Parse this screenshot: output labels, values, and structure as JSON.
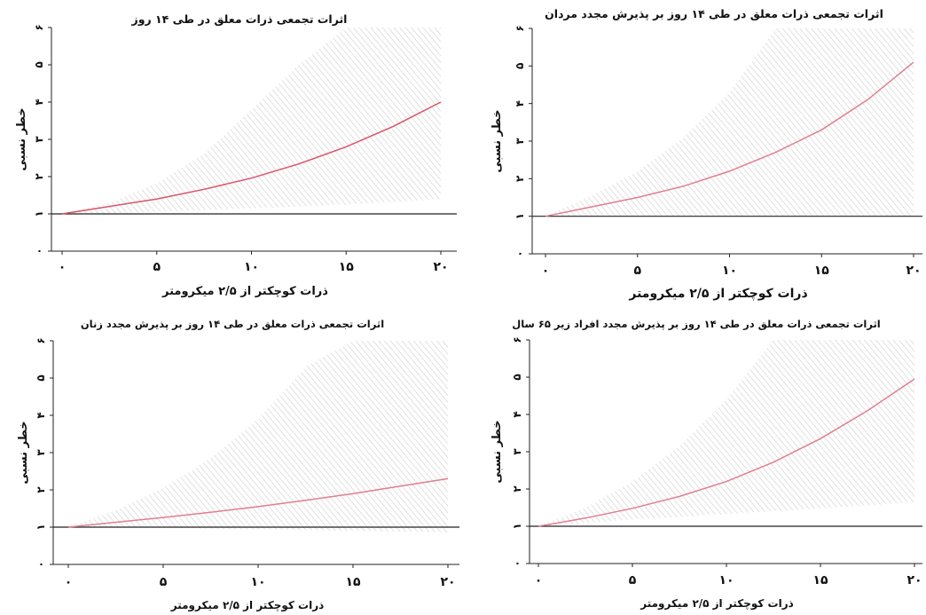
{
  "chart_data": [
    {
      "type": "line",
      "title": "اثرات تجمعی ذرات معلق در طی ۱۴ روز",
      "xlabel": "ذرات کوچکتر از ۲/۵ میکرومتر",
      "ylabel": "خطر نسبی",
      "xlim": [
        0,
        20
      ],
      "ylim": [
        0,
        6
      ],
      "x_tick_labels": [
        "۰",
        "۵",
        "۱۰",
        "۱۵",
        "۲۰"
      ],
      "y_tick_labels": [
        "۰",
        "۱",
        "۲",
        "۳",
        "۴",
        "۵",
        "۶"
      ],
      "reference_line": 1,
      "series": [
        {
          "x": [
            0,
            2.5,
            5,
            7.5,
            10,
            12.5,
            15,
            17.5,
            20
          ],
          "y": [
            1.0,
            1.2,
            1.4,
            1.66,
            1.96,
            2.34,
            2.8,
            3.35,
            4.0
          ],
          "lower": [
            1.0,
            1.02,
            1.06,
            1.1,
            1.15,
            1.19,
            1.25,
            1.32,
            1.4
          ],
          "upper": [
            1.0,
            1.3,
            1.82,
            2.62,
            3.8,
            5.0,
            6.0,
            6.0,
            6.0
          ],
          "color": "#d9536a"
        }
      ]
    },
    {
      "type": "line",
      "title": "اثرات تجمعی ذرات معلق در طی ۱۴ روز بر پذیرش مجدد مردان",
      "xlabel": "ذرات کوچکتر از ۲/۵ میکرومتر",
      "ylabel": "خطر نسبی",
      "xlim": [
        0,
        20
      ],
      "ylim": [
        0,
        6
      ],
      "x_tick_labels": [
        "۰",
        "۵",
        "۱۰",
        "۱۵",
        "۲۰"
      ],
      "y_tick_labels": [
        "۰",
        "۱",
        "۲",
        "۳",
        "۴",
        "۵",
        "۶"
      ],
      "reference_line": 1,
      "series": [
        {
          "x": [
            0,
            2.5,
            5,
            7.5,
            10,
            12.5,
            15,
            17.5,
            20
          ],
          "y": [
            1.0,
            1.25,
            1.5,
            1.8,
            2.2,
            2.7,
            3.3,
            4.1,
            5.1
          ],
          "lower": [
            1.0,
            1.0,
            1.0,
            1.0,
            1.0,
            1.0,
            1.0,
            1.0,
            1.0
          ],
          "upper": [
            1.0,
            1.55,
            2.2,
            3.1,
            4.3,
            6.0,
            6.0,
            6.0,
            6.0
          ],
          "color": "#e07f8f"
        }
      ]
    },
    {
      "type": "line",
      "title": "اثرات تجمعی ذرات معلق در طی ۱۴ روز بر پذیرش مجدد زنان",
      "xlabel": "ذرات کوچکتر از ۲/۵ میکرومتر",
      "ylabel": "خطر نسبی",
      "xlim": [
        0,
        20
      ],
      "ylim": [
        0,
        6
      ],
      "x_tick_labels": [
        "۰",
        "۵",
        "۱۰",
        "۱۵",
        "۲۰"
      ],
      "y_tick_labels": [
        "۰",
        "۱",
        "۲",
        "۳",
        "۴",
        "۵",
        "۶"
      ],
      "reference_line": 1,
      "series": [
        {
          "x": [
            0,
            2.5,
            5,
            7.5,
            10,
            12.5,
            15,
            17.5,
            20
          ],
          "y": [
            1.0,
            1.13,
            1.26,
            1.4,
            1.55,
            1.72,
            1.9,
            2.1,
            2.3
          ],
          "lower": [
            1.0,
            0.99,
            0.98,
            0.96,
            0.94,
            0.92,
            0.9,
            0.88,
            0.86
          ],
          "upper": [
            1.0,
            1.45,
            2.05,
            2.85,
            3.9,
            5.3,
            6.0,
            6.0,
            6.0
          ],
          "color": "#e07f8f"
        }
      ]
    },
    {
      "type": "line",
      "title": "اثرات تجمعی ذرات معلق در طی ۱۴ روز بر پذیرش مجدد افراد زیر ۶۵ سال",
      "xlabel": "ذرات کوچکتر از ۲/۵ میکرومتر",
      "ylabel": "خطر نسبی",
      "xlim": [
        0,
        20
      ],
      "ylim": [
        0,
        6
      ],
      "x_tick_labels": [
        "۰",
        "۵",
        "۱۰",
        "۱۵",
        "۲۰"
      ],
      "y_tick_labels": [
        "۰",
        "۱",
        "۲",
        "۳",
        "۴",
        "۵",
        "۶"
      ],
      "reference_line": 1,
      "series": [
        {
          "x": [
            0,
            2.5,
            5,
            7.5,
            10,
            12.5,
            15,
            17.5,
            20
          ],
          "y": [
            1.0,
            1.22,
            1.48,
            1.8,
            2.2,
            2.72,
            3.35,
            4.1,
            4.95
          ],
          "lower": [
            1.0,
            1.08,
            1.18,
            1.25,
            1.33,
            1.4,
            1.48,
            1.56,
            1.65
          ],
          "upper": [
            1.0,
            1.5,
            2.2,
            3.15,
            4.4,
            6.0,
            6.0,
            6.0,
            6.0
          ],
          "color": "#e07f8f"
        }
      ]
    }
  ]
}
